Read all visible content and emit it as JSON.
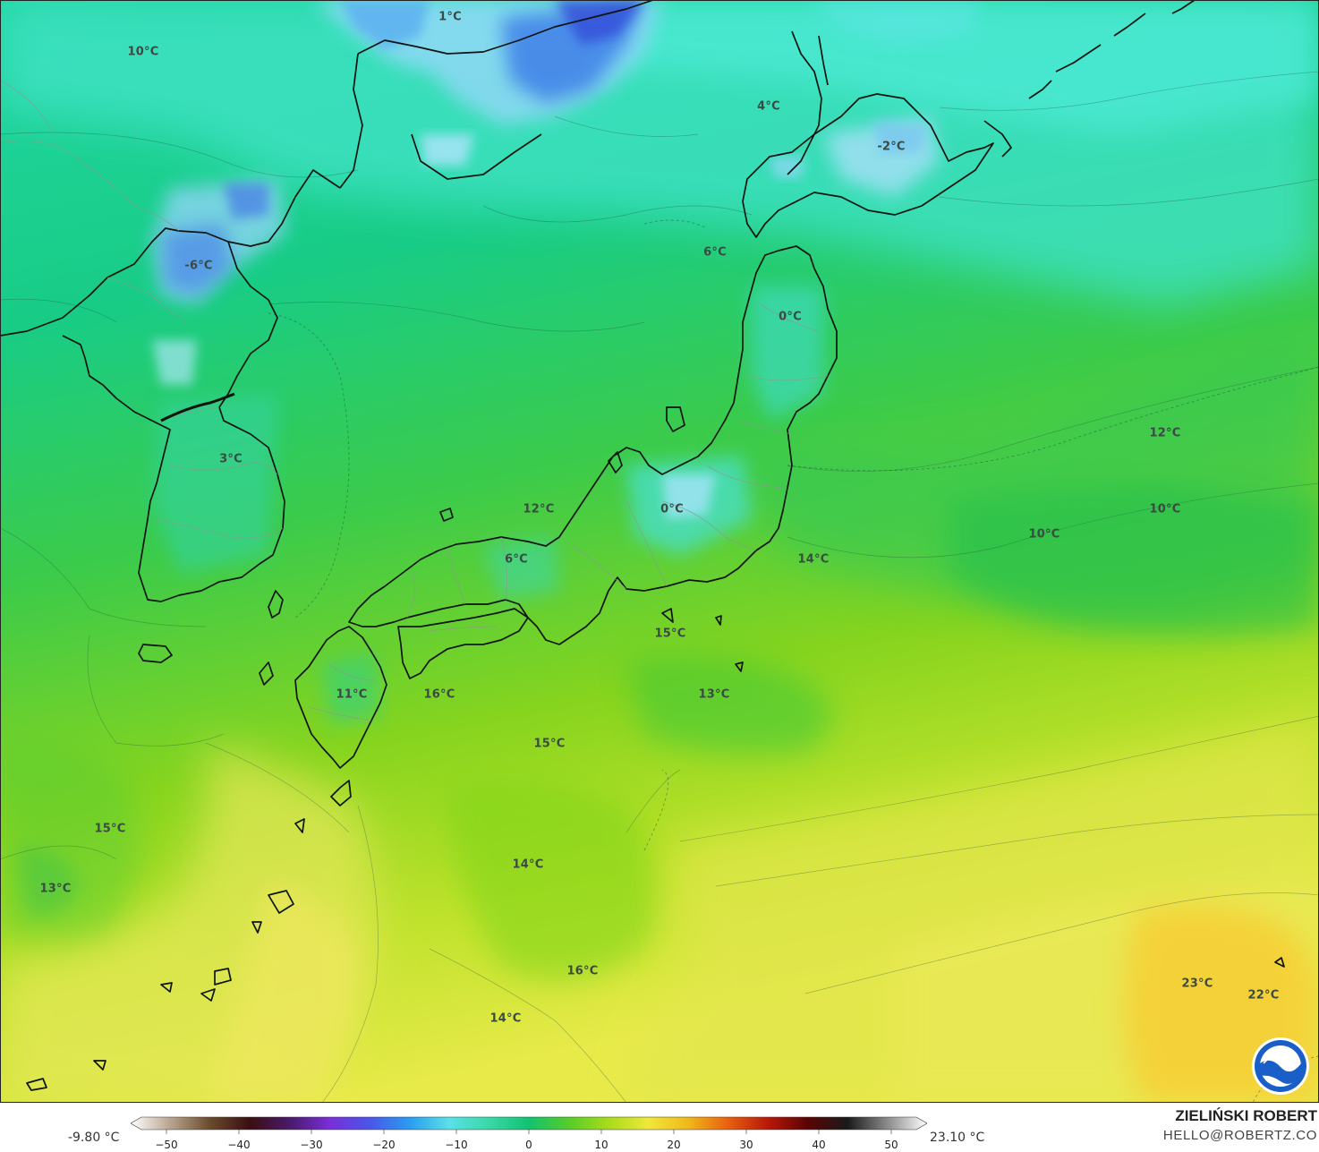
{
  "map": {
    "temperature_labels": [
      {
        "text": "1°C"
      },
      {
        "text": "10°C"
      },
      {
        "text": "4°C"
      },
      {
        "text": "-2°C"
      },
      {
        "text": "-6°C"
      },
      {
        "text": "6°C"
      },
      {
        "text": "0°C"
      },
      {
        "text": "3°C"
      },
      {
        "text": "12°C"
      },
      {
        "text": "12°C"
      },
      {
        "text": "10°C"
      },
      {
        "text": "10°C"
      },
      {
        "text": "0°C"
      },
      {
        "text": "6°C"
      },
      {
        "text": "14°C"
      },
      {
        "text": "15°C"
      },
      {
        "text": "13°C"
      },
      {
        "text": "11°C"
      },
      {
        "text": "16°C"
      },
      {
        "text": "15°C"
      },
      {
        "text": "15°C"
      },
      {
        "text": "13°C"
      },
      {
        "text": "14°C"
      },
      {
        "text": "16°C"
      },
      {
        "text": "14°C"
      },
      {
        "text": "23°C"
      },
      {
        "text": "22°C"
      }
    ],
    "logo": "noaa-logo-icon"
  },
  "colorbar": {
    "min_label": "-9.80 °C",
    "max_label": "23.10 °C",
    "ticks": [
      "−50",
      "−40",
      "−30",
      "−20",
      "−10",
      "0",
      "10",
      "20",
      "30",
      "40",
      "50"
    ],
    "stops": [
      "#ffffff",
      "#b8a48e",
      "#6a4a2c",
      "#3a0e12",
      "#4a1a6a",
      "#7a2ed8",
      "#4a56e8",
      "#2a9cf0",
      "#5ae0e8",
      "#3ad8a8",
      "#12c270",
      "#56cc2a",
      "#a8dc1a",
      "#f0e838",
      "#f0b81a",
      "#e86010",
      "#b81808",
      "#5a0404",
      "#1a1a1a",
      "#8a8a8a",
      "#ffffff"
    ]
  },
  "branding": {
    "name": "ZIELIŃSKI ROBERT",
    "email": "HELLO@ROBERTZ.CO"
  }
}
